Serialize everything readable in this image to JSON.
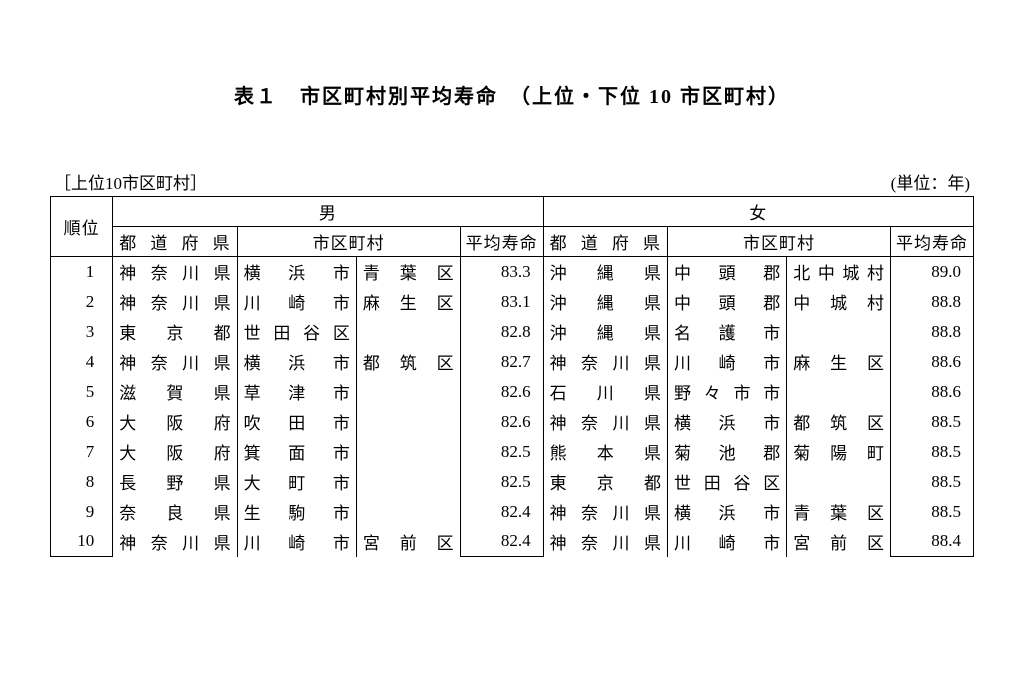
{
  "title": "表１　市区町村別平均寿命　（上位・下位 10 市区町村）",
  "subtitle_left": "［上位10市区町村］",
  "subtitle_right": "(単位：年)",
  "headers": {
    "rank": "順位",
    "male": "男",
    "female": "女",
    "prefecture": "都道府県",
    "municipality": "市区町村",
    "life_expectancy": "平均寿命"
  },
  "rows": [
    {
      "rank": "1",
      "m_pref": "神奈川県",
      "m_city1": "横浜市",
      "m_city2": "青葉区",
      "m_life": "83.3",
      "f_pref": "沖縄県",
      "f_city1": "中頭郡",
      "f_city2": "北中城村",
      "f_life": "89.0"
    },
    {
      "rank": "2",
      "m_pref": "神奈川県",
      "m_city1": "川崎市",
      "m_city2": "麻生区",
      "m_life": "83.1",
      "f_pref": "沖縄県",
      "f_city1": "中頭郡",
      "f_city2": "中城村",
      "f_life": "88.8"
    },
    {
      "rank": "3",
      "m_pref": "東京都",
      "m_city1": "世田谷区",
      "m_city2": "",
      "m_life": "82.8",
      "f_pref": "沖縄県",
      "f_city1": "名護市",
      "f_city2": "",
      "f_life": "88.8"
    },
    {
      "rank": "4",
      "m_pref": "神奈川県",
      "m_city1": "横浜市",
      "m_city2": "都筑区",
      "m_life": "82.7",
      "f_pref": "神奈川県",
      "f_city1": "川崎市",
      "f_city2": "麻生区",
      "f_life": "88.6"
    },
    {
      "rank": "5",
      "m_pref": "滋賀県",
      "m_city1": "草津市",
      "m_city2": "",
      "m_life": "82.6",
      "f_pref": "石川県",
      "f_city1": "野々市市",
      "f_city2": "",
      "f_life": "88.6"
    },
    {
      "rank": "6",
      "m_pref": "大阪府",
      "m_city1": "吹田市",
      "m_city2": "",
      "m_life": "82.6",
      "f_pref": "神奈川県",
      "f_city1": "横浜市",
      "f_city2": "都筑区",
      "f_life": "88.5"
    },
    {
      "rank": "7",
      "m_pref": "大阪府",
      "m_city1": "箕面市",
      "m_city2": "",
      "m_life": "82.5",
      "f_pref": "熊本県",
      "f_city1": "菊池郡",
      "f_city2": "菊陽町",
      "f_life": "88.5"
    },
    {
      "rank": "8",
      "m_pref": "長野県",
      "m_city1": "大町市",
      "m_city2": "",
      "m_life": "82.5",
      "f_pref": "東京都",
      "f_city1": "世田谷区",
      "f_city2": "",
      "f_life": "88.5"
    },
    {
      "rank": "9",
      "m_pref": "奈良県",
      "m_city1": "生駒市",
      "m_city2": "",
      "m_life": "82.4",
      "f_pref": "神奈川県",
      "f_city1": "横浜市",
      "f_city2": "青葉区",
      "f_life": "88.5"
    },
    {
      "rank": "10",
      "m_pref": "神奈川県",
      "m_city1": "川崎市",
      "m_city2": "宮前区",
      "m_life": "82.4",
      "f_pref": "神奈川県",
      "f_city1": "川崎市",
      "f_city2": "宮前区",
      "f_life": "88.4"
    }
  ]
}
